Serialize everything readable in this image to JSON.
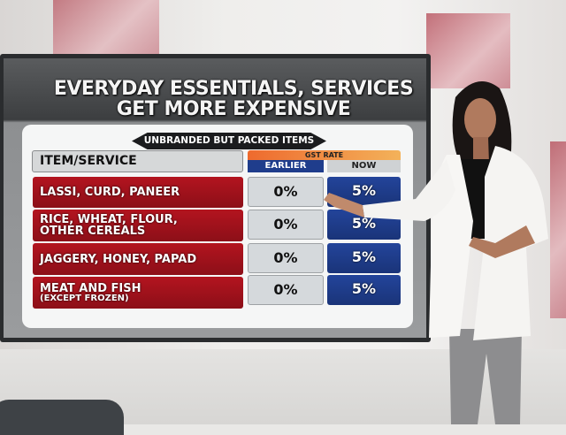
{
  "graphic": {
    "title_line1": "EVERYDAY ESSENTIALS, SERVICES",
    "title_line2": "GET MORE EXPENSIVE",
    "banner": "UNBRANDED BUT PACKED ITEMS",
    "header": {
      "item": "ITEM/SERVICE",
      "gst": "GST RATE",
      "earlier": "EARLIER",
      "now": "NOW"
    },
    "rows": [
      {
        "item": "LASSI, CURD, PANEER",
        "sub": "",
        "earlier": "0%",
        "now": "5%"
      },
      {
        "item": "RICE, WHEAT, FLOUR,",
        "sub": "OTHER CEREALS",
        "earlier": "0%",
        "now": "5%"
      },
      {
        "item": "JAGGERY, HONEY, PAPAD",
        "sub": "",
        "earlier": "0%",
        "now": "5%"
      },
      {
        "item": "MEAT AND FISH",
        "sub": "(EXCEPT FROZEN)",
        "earlier": "0%",
        "now": "5%"
      }
    ]
  },
  "colors": {
    "row_label": "#a3121c",
    "now": "#1f3d8c",
    "earlier_header": "#1f3d8c",
    "gst_header": "#f08a3c"
  }
}
